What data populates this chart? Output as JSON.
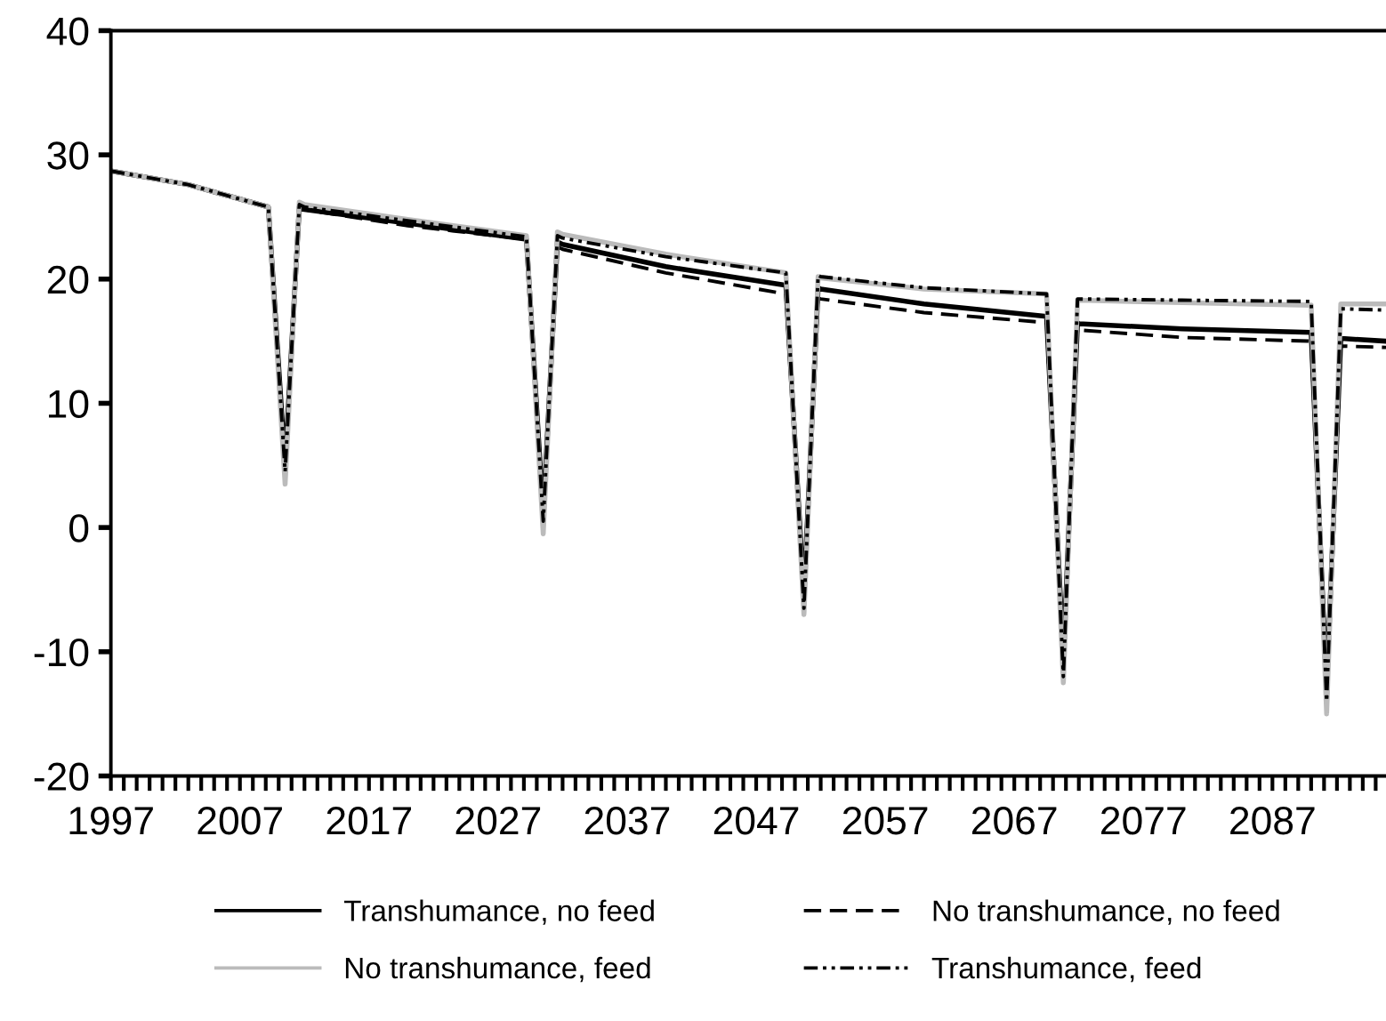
{
  "chart_data": {
    "type": "line",
    "x": [
      1997,
      2003,
      2009.2,
      2010.5,
      2011.6,
      2012,
      2020,
      2029.2,
      2030.5,
      2031.6,
      2032,
      2040,
      2049.3,
      2050.7,
      2051.8,
      2052,
      2060,
      2069.5,
      2070.8,
      2071.9,
      2072,
      2080,
      2090,
      2091.2,
      2092.3,
      2092.6,
      2095.8
    ],
    "series": [
      {
        "name": "Transhumance, no feed",
        "color": "#000000",
        "line_style": "solid",
        "values": [
          28.7,
          27.6,
          25.8,
          5,
          25.8,
          25.6,
          24.5,
          23.2,
          1,
          23,
          22.8,
          21,
          19.5,
          -5.5,
          19.3,
          19.2,
          18,
          17,
          -10.5,
          16.5,
          16.4,
          16,
          15.7,
          -13,
          15.2,
          15.2,
          15
        ]
      },
      {
        "name": "No transhumance, no feed",
        "color": "#000000",
        "line_style": "dashed",
        "values": [
          28.7,
          27.6,
          25.8,
          5,
          25.8,
          25.6,
          24.3,
          23.2,
          1,
          22.6,
          22.4,
          20.5,
          18.8,
          -5.5,
          18.5,
          18.4,
          17.3,
          16.5,
          -10.5,
          16,
          15.9,
          15.3,
          15,
          -13,
          14.6,
          14.6,
          14.5
        ]
      },
      {
        "name": "No transhumance, feed",
        "color": "#bbbbbb",
        "line_style": "solid",
        "values": [
          28.7,
          27.6,
          25.8,
          3.5,
          26.2,
          26,
          24.8,
          23.5,
          -0.5,
          23.8,
          23.6,
          22,
          20.5,
          -7,
          20.2,
          20.1,
          19.2,
          18.8,
          -12.5,
          18.3,
          18.3,
          18.1,
          17.9,
          -15,
          18,
          18,
          18
        ]
      },
      {
        "name": "Transhumance, feed",
        "color": "#000000",
        "line_style": "dotted",
        "values": [
          28.7,
          27.6,
          25.8,
          4.5,
          26,
          25.8,
          24.7,
          23.4,
          0.5,
          23.5,
          23.3,
          21.8,
          20.5,
          -6.5,
          20.3,
          20.2,
          19.3,
          18.8,
          -12,
          18.4,
          18.4,
          18.3,
          18.2,
          -14,
          17.6,
          17.6,
          17.5
        ]
      }
    ],
    "xlim": [
      1997,
      2095.8
    ],
    "ylim": [
      -20,
      40
    ],
    "yticks": [
      -20,
      -10,
      0,
      10,
      20,
      30,
      40
    ],
    "xticks": [
      1997,
      {
        "value": 1998,
        "label": null
      },
      {
        "value": 1999,
        "label": null
      },
      {
        "value": 2000,
        "label": null
      },
      {
        "value": 2001,
        "label": null
      },
      {
        "value": 2002,
        "label": null
      },
      {
        "value": 2003,
        "label": null
      },
      {
        "value": 2004,
        "label": null
      },
      {
        "value": 2005,
        "label": null
      },
      {
        "value": 2006,
        "label": null
      },
      2007,
      {
        "value": 2008,
        "label": null
      },
      {
        "value": 2009,
        "label": null
      },
      {
        "value": 2010,
        "label": null
      },
      {
        "value": 2011,
        "label": null
      },
      {
        "value": 2012,
        "label": null
      },
      {
        "value": 2013,
        "label": null
      },
      {
        "value": 2014,
        "label": null
      },
      {
        "value": 2015,
        "label": null
      },
      {
        "value": 2016,
        "label": null
      },
      2017,
      {
        "value": 2018,
        "label": null
      },
      {
        "value": 2019,
        "label": null
      },
      {
        "value": 2020,
        "label": null
      },
      {
        "value": 2021,
        "label": null
      },
      {
        "value": 2022,
        "label": null
      },
      {
        "value": 2023,
        "label": null
      },
      {
        "value": 2024,
        "label": null
      },
      {
        "value": 2025,
        "label": null
      },
      {
        "value": 2026,
        "label": null
      },
      2027,
      {
        "value": 2028,
        "label": null
      },
      {
        "value": 2029,
        "label": null
      },
      {
        "value": 2030,
        "label": null
      },
      {
        "value": 2031,
        "label": null
      },
      {
        "value": 2032,
        "label": null
      },
      {
        "value": 2033,
        "label": null
      },
      {
        "value": 2034,
        "label": null
      },
      {
        "value": 2035,
        "label": null
      },
      {
        "value": 2036,
        "label": null
      },
      2037,
      {
        "value": 2038,
        "label": null
      },
      {
        "value": 2039,
        "label": null
      },
      {
        "value": 2040,
        "label": null
      },
      {
        "value": 2041,
        "label": null
      },
      {
        "value": 2042,
        "label": null
      },
      {
        "value": 2043,
        "label": null
      },
      {
        "value": 2044,
        "label": null
      },
      {
        "value": 2045,
        "label": null
      },
      {
        "value": 2046,
        "label": null
      },
      2047,
      {
        "value": 2048,
        "label": null
      },
      {
        "value": 2049,
        "label": null
      },
      {
        "value": 2050,
        "label": null
      },
      {
        "value": 2051,
        "label": null
      },
      {
        "value": 2052,
        "label": null
      },
      {
        "value": 2053,
        "label": null
      },
      {
        "value": 2054,
        "label": null
      },
      {
        "value": 2055,
        "label": null
      },
      {
        "value": 2056,
        "label": null
      },
      2057,
      {
        "value": 2058,
        "label": null
      },
      {
        "value": 2059,
        "label": null
      },
      {
        "value": 2060,
        "label": null
      },
      {
        "value": 2061,
        "label": null
      },
      {
        "value": 2062,
        "label": null
      },
      {
        "value": 2063,
        "label": null
      },
      {
        "value": 2064,
        "label": null
      },
      {
        "value": 2065,
        "label": null
      },
      {
        "value": 2066,
        "label": null
      },
      2067,
      {
        "value": 2068,
        "label": null
      },
      {
        "value": 2069,
        "label": null
      },
      {
        "value": 2070,
        "label": null
      },
      {
        "value": 2071,
        "label": null
      },
      {
        "value": 2072,
        "label": null
      },
      {
        "value": 2073,
        "label": null
      },
      {
        "value": 2074,
        "label": null
      },
      {
        "value": 2075,
        "label": null
      },
      {
        "value": 2076,
        "label": null
      },
      2077,
      {
        "value": 2078,
        "label": null
      },
      {
        "value": 2079,
        "label": null
      },
      {
        "value": 2080,
        "label": null
      },
      {
        "value": 2081,
        "label": null
      },
      {
        "value": 2082,
        "label": null
      },
      {
        "value": 2083,
        "label": null
      },
      {
        "value": 2084,
        "label": null
      },
      {
        "value": 2085,
        "label": null
      },
      {
        "value": 2086,
        "label": null
      },
      2087,
      {
        "value": 2088,
        "label": null
      },
      {
        "value": 2089,
        "label": null
      },
      {
        "value": 2090,
        "label": null
      },
      {
        "value": 2091,
        "label": null
      },
      {
        "value": 2092,
        "label": null
      },
      {
        "value": 2093,
        "label": null
      },
      {
        "value": 2094,
        "label": null
      },
      {
        "value": 2095,
        "label": null
      }
    ],
    "grid": false,
    "legend": "bottom"
  }
}
